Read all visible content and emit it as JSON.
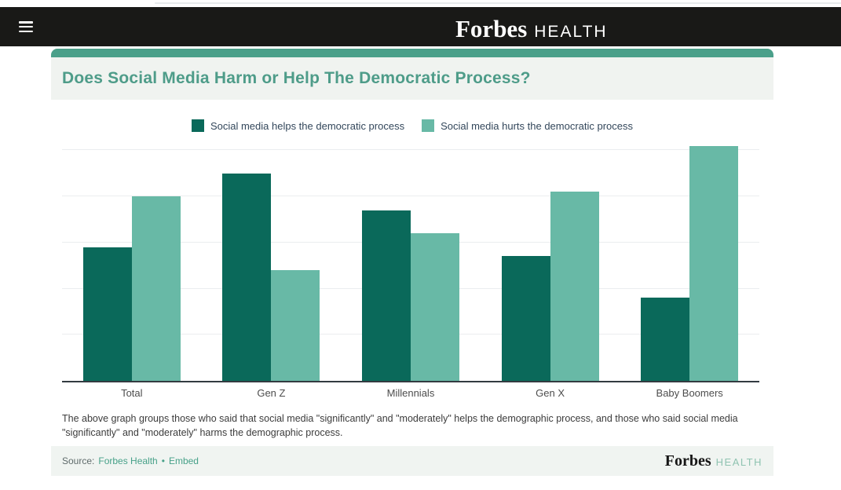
{
  "header": {
    "brand_forbes": "Forbes",
    "brand_health": "HEALTH"
  },
  "card": {
    "title": "Does Social Media Harm or Help The Democratic Process?",
    "note": "The above graph groups those who said that social media \"significantly\" and \"moderately\" helps the demographic process, and those who said social media \"significantly\" and \"moderately\" harms the demographic process.",
    "footer": {
      "source_label": "Source:",
      "source_link_label": "Forbes Health",
      "separator": "•",
      "embed_link_label": "Embed",
      "brand_forbes": "Forbes",
      "brand_health": "HEALTH"
    }
  },
  "chart_data": {
    "type": "bar",
    "title": "Does Social Media Harm or Help The Democratic Process?",
    "categories": [
      "Total",
      "Gen Z",
      "Millennials",
      "Gen X",
      "Baby Boomers"
    ],
    "series": [
      {
        "name": "Social media helps the democratic process",
        "color": "#0a695a",
        "values": [
          29,
          45,
          37,
          27,
          18
        ]
      },
      {
        "name": "Social media hurts the democratic process",
        "color": "#68b9a6",
        "values": [
          40,
          24,
          32,
          41,
          51
        ]
      }
    ],
    "xlabel": "",
    "ylabel": "",
    "units": "percent (estimated, no value labels shown)",
    "ylim": [
      0,
      51.6
    ],
    "gridline_values": [
      10,
      20,
      30,
      40,
      50
    ],
    "grid": true,
    "y_axis_labels_visible": false,
    "legend_position": "top"
  },
  "colors": {
    "header_bg": "#191917",
    "accent_teal": "#4ba08a",
    "title_text": "#4e9c89",
    "title_bg": "#f0f3f0",
    "series_helps": "#0a695a",
    "series_hurts": "#68b9a6",
    "legend_text": "#33475b",
    "link_teal": "#47a189",
    "footer_bg": "#f0f4f1",
    "footer_health_text": "#8fc3b1"
  }
}
